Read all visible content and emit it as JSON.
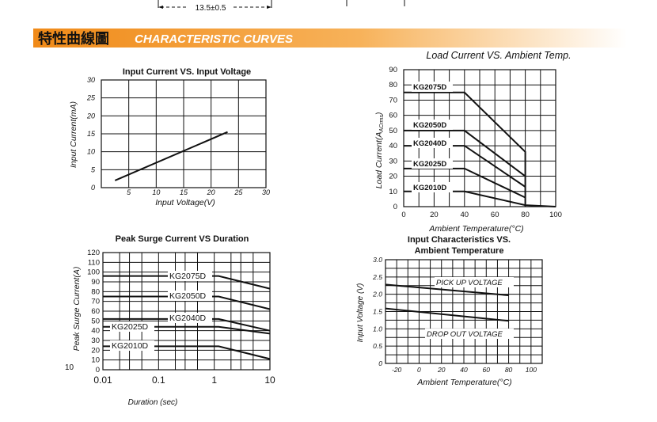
{
  "header": {
    "dimension_text": "13.5±0.5",
    "title_cn": "特性曲線圖",
    "title_en": "CHARACTERISTIC CURVES",
    "banner_colors": [
      "#f08a18",
      "#f7b25a",
      "#fde4c2"
    ]
  },
  "page_number": "10",
  "chart_data": [
    {
      "id": "input-current",
      "type": "line",
      "title": "Input Current VS. Input Voltage",
      "xlabel": "Input  Voltage(V)",
      "ylabel": "Input Current(mA)",
      "xlim": [
        0,
        30
      ],
      "ylim": [
        0,
        30
      ],
      "x_ticks": [
        5,
        10,
        15,
        20,
        25,
        30
      ],
      "y_ticks": [
        0,
        5,
        10,
        15,
        20,
        25,
        30
      ],
      "grid": true,
      "series": [
        {
          "points": [
            [
              2.5,
              2
            ],
            [
              23,
              15.5
            ]
          ]
        }
      ]
    },
    {
      "id": "load-current",
      "type": "line",
      "title": "Load Current VS.  Ambient Temp.",
      "xlabel": "Ambient Temperature(°C)",
      "ylabel": "Load Current(A",
      "ylabel_sub": "ACrms",
      "ylabel_tail": ")",
      "xlim": [
        0,
        100
      ],
      "ylim": [
        0,
        90
      ],
      "x_ticks": [
        0,
        20,
        40,
        60,
        80,
        100
      ],
      "y_ticks": [
        0,
        10,
        20,
        30,
        40,
        50,
        60,
        70,
        80,
        90
      ],
      "grid": true,
      "series": [
        {
          "name": "KG2075D",
          "points": [
            [
              0,
              75
            ],
            [
              40,
              75
            ],
            [
              80,
              36
            ],
            [
              80,
              0
            ]
          ]
        },
        {
          "name": "KG2050D",
          "points": [
            [
              0,
              50
            ],
            [
              40,
              50
            ],
            [
              80,
              20
            ]
          ]
        },
        {
          "name": "KG2040D",
          "points": [
            [
              0,
              40
            ],
            [
              40,
              40
            ],
            [
              80,
              13
            ]
          ]
        },
        {
          "name": "KG2025D",
          "points": [
            [
              0,
              25
            ],
            [
              40,
              25
            ],
            [
              80,
              6
            ]
          ]
        },
        {
          "name": "KG2010D",
          "points": [
            [
              0,
              10
            ],
            [
              40,
              10
            ],
            [
              80,
              1
            ],
            [
              100,
              0
            ]
          ]
        }
      ]
    },
    {
      "id": "peak-surge",
      "type": "line",
      "title": "Peak Surge Current VS Duration",
      "xlabel": "Duration (sec)",
      "ylabel": "Peak Surge Current(A)",
      "xscale": "log",
      "xlim": [
        0.01,
        10
      ],
      "ylim": [
        0,
        120
      ],
      "x_ticks": [
        "0.01",
        "0.1",
        "1",
        "10"
      ],
      "y_ticks": [
        0,
        10,
        20,
        30,
        40,
        50,
        60,
        70,
        80,
        90,
        100,
        110,
        120
      ],
      "grid": true,
      "series": [
        {
          "name": "KG2075D",
          "points": [
            [
              0.01,
              96
            ],
            [
              1.2,
              96
            ],
            [
              10,
              83
            ]
          ]
        },
        {
          "name": "KG2050D",
          "points": [
            [
              0.01,
              75
            ],
            [
              1.2,
              75
            ],
            [
              10,
              62
            ]
          ]
        },
        {
          "name": "KG2040D",
          "points": [
            [
              0.01,
              52
            ],
            [
              1.2,
              52
            ],
            [
              10,
              40
            ]
          ]
        },
        {
          "name": "KG2025D",
          "points": [
            [
              0.01,
              44
            ],
            [
              1.2,
              44
            ],
            [
              10,
              37
            ]
          ]
        },
        {
          "name": "KG2010D",
          "points": [
            [
              0.01,
              24
            ],
            [
              1.2,
              24
            ],
            [
              10,
              11
            ]
          ]
        }
      ]
    },
    {
      "id": "input-characteristics",
      "type": "line",
      "title_lines": [
        "Input Characteristics VS.",
        "Ambient  Temperature"
      ],
      "xlabel": "Ambient Temperature(°C)",
      "ylabel": "Input Voltage (V)",
      "xlim": [
        -30,
        110
      ],
      "ylim": [
        0,
        3.0
      ],
      "x_ticks": [
        -20,
        0,
        20,
        40,
        60,
        80,
        100
      ],
      "y_ticks": [
        "0",
        "0.5",
        "1.0",
        "1.5",
        "2.0",
        "2.5",
        "3.0"
      ],
      "grid": true,
      "series": [
        {
          "name": "PICK UP VOLTAGE",
          "points": [
            [
              -30,
              2.28
            ],
            [
              80,
              1.97
            ]
          ]
        },
        {
          "name": "DROP OUT VOLTAGE",
          "points": [
            [
              -30,
              1.59
            ],
            [
              80,
              1.23
            ]
          ]
        }
      ]
    }
  ]
}
